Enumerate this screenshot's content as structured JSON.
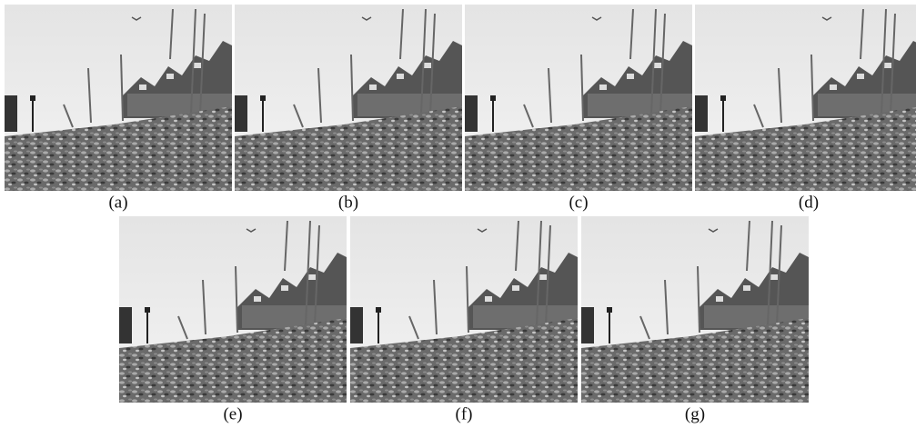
{
  "figure": {
    "panels": [
      {
        "label": "(a)"
      },
      {
        "label": "(b)"
      },
      {
        "label": "(c)"
      },
      {
        "label": "(d)"
      },
      {
        "label": "(e)"
      },
      {
        "label": "(f)"
      },
      {
        "label": "(g)"
      }
    ]
  }
}
